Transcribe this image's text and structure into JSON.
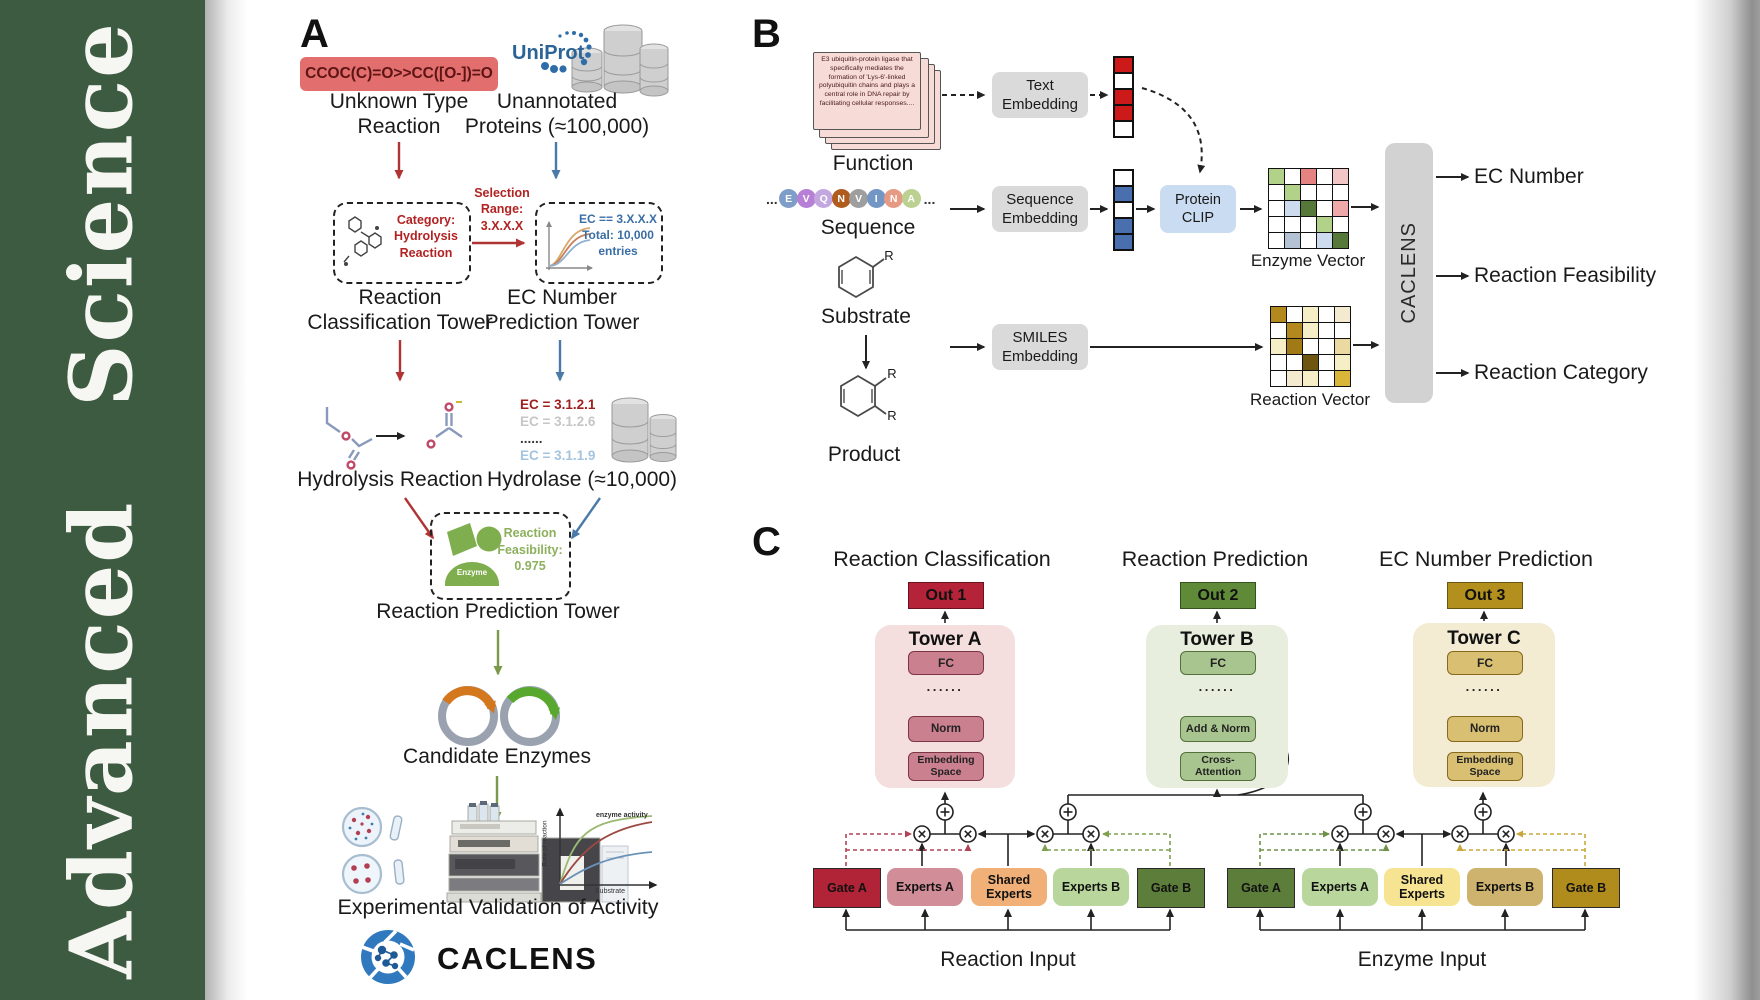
{
  "journal": {
    "title": "Advanced  Science"
  },
  "colors": {
    "sidebar_green": "#3d5b40",
    "smiles_red": "#e26e6e",
    "arrow_red": "#b03434",
    "arrow_blue": "#4a7aaa",
    "arrow_green": "#7a9a4a",
    "uniprot_blue": "#2a6496",
    "enzyme_green": "#7fae4e",
    "out1": "#b52338",
    "out2": "#5f8a38",
    "out3": "#b3901e",
    "tower_a_bg": "#f4dede",
    "tower_b_bg": "#e7eedd",
    "tower_c_bg": "#f3ebd2"
  },
  "panelA": {
    "label": "A",
    "smiles": "CCOC(C)=O>>CC([O-])=O",
    "unknown_reaction": "Unknown Type\nReaction",
    "uniprot": "UniProt",
    "unannotated": "Unannotated\nProteins (≈100,000)",
    "category_box": "Category:\nHydrolysis\nReaction",
    "selection": "Selection\nRange:\n3.X.X.X",
    "ec_box": "EC == 3.X.X.X\nTotal: 10,000\nentries",
    "classification_tower": "Reaction\nClassification Tower",
    "ec_prediction_tower": "EC Number\nPrediction Tower",
    "hydrolysis": "Hydrolysis Reaction",
    "hydrolase": "Hydrolase (≈10,000)",
    "ec_list": [
      {
        "text": "EC = 3.1.2.1",
        "style": "color:#9e1f1f;font-weight:bold"
      },
      {
        "text": "EC = 3.1.2.6",
        "style": "color:#c6c6c6;font-weight:bold"
      },
      {
        "text": "......",
        "style": "color:#3a3a3a;font-weight:bold"
      },
      {
        "text": "EC = 3.1.1.9",
        "style": "color:#a3c4de;font-weight:bold"
      }
    ],
    "enzyme_badge": "Enzyme",
    "feasibility": "Reaction\nFeasibility:\n0.975",
    "prediction_tower": "Reaction Prediction Tower",
    "candidate": "Candidate Enzymes",
    "plot": {
      "curve_label": "enzyme activity",
      "ylabel": "Rate of reaction",
      "xlabel": "Substrate"
    },
    "validation": "Experimental Validation of Activity",
    "brand": "CACLENS"
  },
  "panelB": {
    "label": "B",
    "function_card": "E3 ubiquitin-protein ligase that specifically mediates the formation of 'Lys-6'-linked polyubiquitin chains and plays a central role in DNA repair by facilitating cellular responses....",
    "function": "Function",
    "ellipsis_left": "...",
    "ellipsis_right": "...",
    "sequence_letters": [
      {
        "ch": "E",
        "color": "#7e9dc8"
      },
      {
        "ch": "V",
        "color": "#b77fd6"
      },
      {
        "ch": "Q",
        "color": "#c3a8e0"
      },
      {
        "ch": "N",
        "color": "#b05c1e"
      },
      {
        "ch": "V",
        "color": "#9e9e9e"
      },
      {
        "ch": "I",
        "color": "#7396c4"
      },
      {
        "ch": "N",
        "color": "#e59a84"
      },
      {
        "ch": "A",
        "color": "#bcd191"
      }
    ],
    "sequence": "Sequence",
    "substrate": "Substrate",
    "product": "Product",
    "r": "R",
    "text_embedding": "Text\nEmbedding",
    "sequence_embedding": "Sequence\nEmbedding",
    "smiles_embedding": "SMILES\nEmbedding",
    "protein_clip": "Protein\nCLIP",
    "text_vector": [
      "#cc1a1a",
      "#ffffff",
      "#cc1a1a",
      "#cc1a1a",
      "#ffffff"
    ],
    "seq_vector": [
      "#ffffff",
      "#4a6fae",
      "#ffffff",
      "#4a6fae",
      "#4a6fae"
    ],
    "enzyme_matrix": [
      "#b2d189",
      "#ffffff",
      "#e58383",
      "#ffffff",
      "#f3c6c6",
      "#ffffff",
      "#b2d189",
      "#ffffff",
      "#ffffff",
      "#ffffff",
      "#ffffff",
      "#ccdcee",
      "#56793a",
      "#ffffff",
      "#efa9a9",
      "#ffffff",
      "#ffffff",
      "#ffffff",
      "#b2d189",
      "#ffffff",
      "#ffffff",
      "#b3c3d3",
      "#ffffff",
      "#ccdcee",
      "#56793a"
    ],
    "reaction_matrix": [
      "#b3891d",
      "#ffffff",
      "#f6eec6",
      "#ffffff",
      "#f3ead0",
      "#ffffff",
      "#b3891d",
      "#f6eec6",
      "#ffffff",
      "#ffffff",
      "#f6eec6",
      "#a07b15",
      "#ffffff",
      "#ffffff",
      "#ead9a0",
      "#ffffff",
      "#ffffff",
      "#6e5510",
      "#ffffff",
      "#f6eec6",
      "#ffffff",
      "#f3ead0",
      "#f6eec6",
      "#ffffff",
      "#d9b53a"
    ],
    "enzyme_vector_label": "Enzyme Vector",
    "reaction_vector_label": "Reaction Vector",
    "caclens": "CACLENS",
    "outputs": [
      "EC Number",
      "Reaction Feasibility",
      "Reaction Category"
    ]
  },
  "panelC": {
    "label": "C",
    "columns": [
      {
        "title": "Reaction Classification",
        "out": "Out 1",
        "tower": "Tower A",
        "fc": "FC",
        "dots": "......",
        "mid": "Norm",
        "bottom": "Embedding\nSpace"
      },
      {
        "title": "Reaction Prediction",
        "out": "Out 2",
        "tower": "Tower B",
        "fc": "FC",
        "dots": "......",
        "mid": "Add & Norm",
        "bottom": "Cross-\nAttention"
      },
      {
        "title": "EC Number Prediction",
        "out": "Out 3",
        "tower": "Tower C",
        "fc": "FC",
        "dots": "......",
        "mid": "Norm",
        "bottom": "Embedding\nSpace"
      }
    ],
    "moe": [
      {
        "gate_a": "Gate A",
        "experts_a": "Experts A",
        "shared": "Shared\nExperts",
        "experts_b": "Experts B",
        "gate_b": "Gate B",
        "input": "Reaction Input"
      },
      {
        "gate_a": "Gate A",
        "experts_a": "Experts A",
        "shared": "Shared\nExperts",
        "experts_b": "Experts B",
        "gate_b": "Gate B",
        "input": "Enzyme Input"
      }
    ]
  }
}
